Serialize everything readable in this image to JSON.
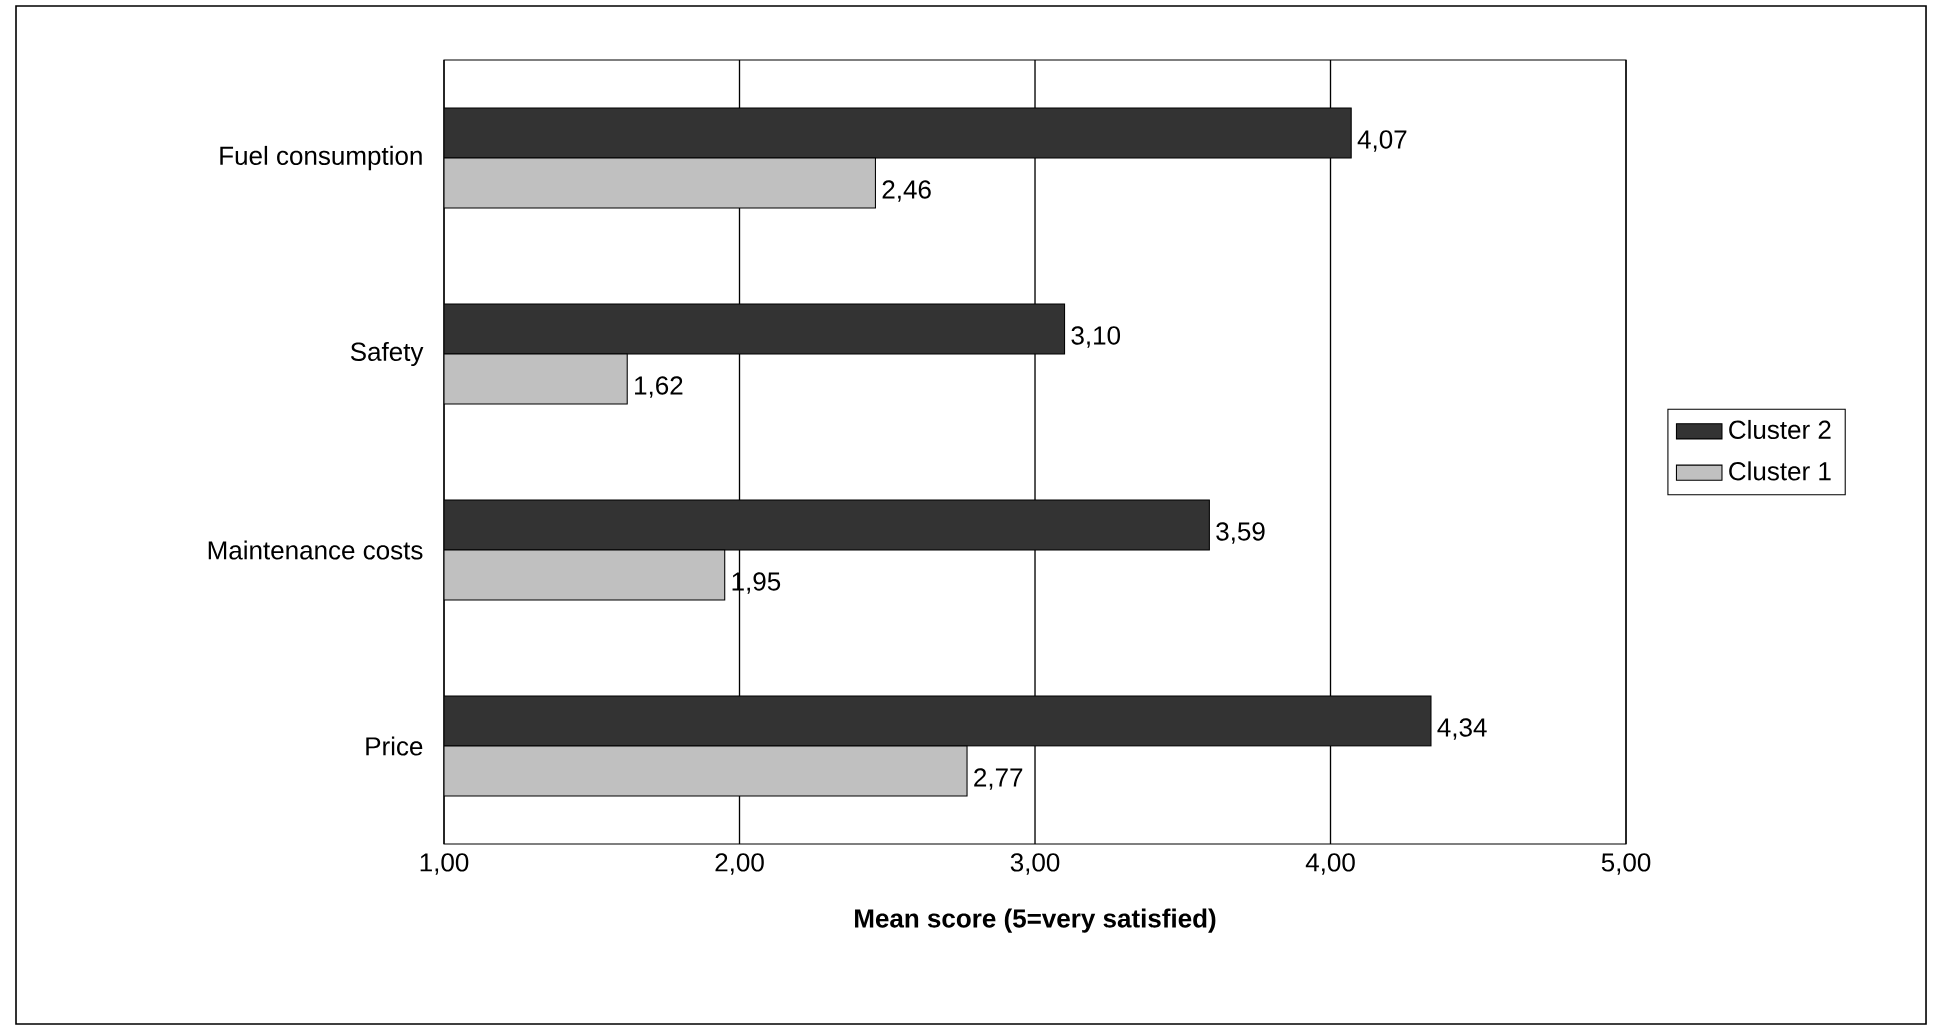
{
  "chart_data": {
    "type": "bar",
    "orientation": "horizontal",
    "categories": [
      "Fuel consumption",
      "Safety",
      "Maintenance costs",
      "Price"
    ],
    "series": [
      {
        "name": "Cluster 2",
        "color": "#333333",
        "values": [
          4.07,
          3.1,
          3.59,
          4.34
        ],
        "value_labels": [
          "4,07",
          "3,10",
          "3,59",
          "4,34"
        ]
      },
      {
        "name": "Cluster 1",
        "color": "#c0c0c0",
        "values": [
          2.46,
          1.62,
          1.95,
          2.77
        ],
        "value_labels": [
          "2,46",
          "1,62",
          "1,95",
          "2,77"
        ]
      }
    ],
    "xlim": [
      1,
      5
    ],
    "xticks": [
      {
        "value": 1,
        "label": "1,00"
      },
      {
        "value": 2,
        "label": "2,00"
      },
      {
        "value": 3,
        "label": "3,00"
      },
      {
        "value": 4,
        "label": "4,00"
      },
      {
        "value": 5,
        "label": "5,00"
      }
    ],
    "xlabel": "**Mean score (5=very satisfied)**",
    "grid": "x",
    "legend": "right"
  }
}
